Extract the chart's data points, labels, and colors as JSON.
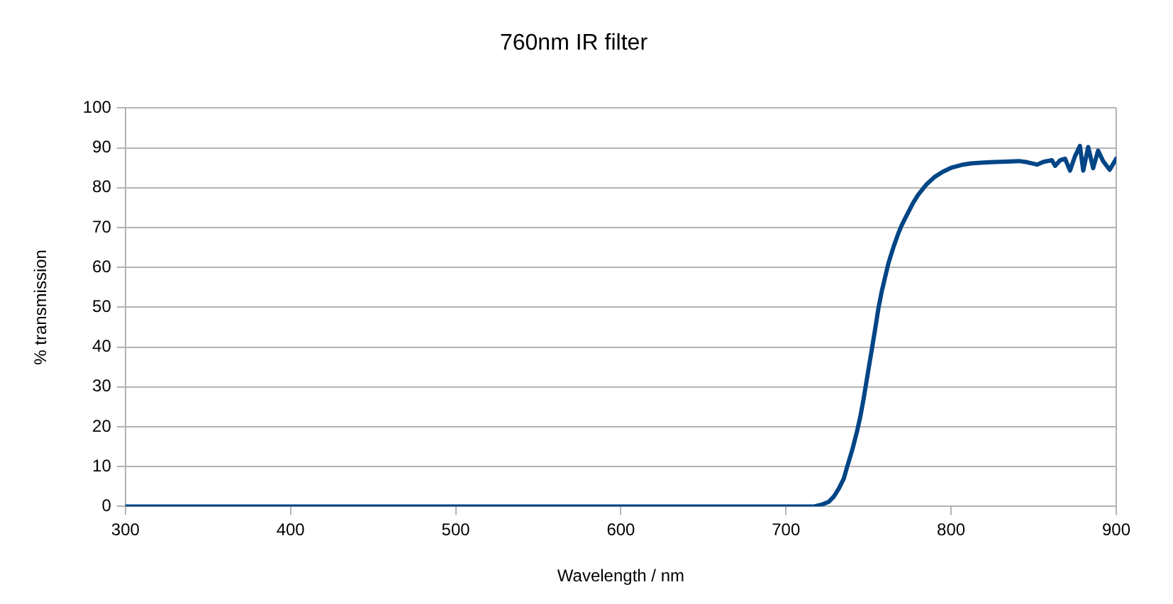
{
  "chart_data": {
    "type": "line",
    "title": "760nm IR filter",
    "xlabel": "Wavelength / nm",
    "ylabel": "% transmission",
    "x": [
      300,
      400,
      500,
      600,
      700,
      710,
      717,
      722,
      726,
      729,
      732,
      735,
      737,
      740,
      743,
      745,
      747,
      750,
      752,
      754,
      756,
      758,
      760,
      762,
      765,
      768,
      770,
      773,
      777,
      780,
      785,
      790,
      795,
      800,
      806,
      812,
      818,
      824,
      830,
      836,
      841,
      846,
      852,
      856,
      861,
      863,
      866,
      869,
      872,
      875,
      878,
      880,
      883,
      886,
      889,
      892,
      896,
      900
    ],
    "series": [
      {
        "color": "#004586",
        "values": [
          0,
          0,
          0,
          0,
          0,
          0,
          0,
          0.5,
          1.2,
          2.5,
          4.5,
          7,
          9.9,
          14,
          18.8,
          22.5,
          27,
          34.5,
          39.5,
          44.5,
          49.8,
          54,
          57.5,
          61,
          65,
          68.5,
          70.5,
          73,
          76.2,
          78.2,
          80.8,
          82.7,
          84,
          85,
          85.7,
          86.1,
          86.3,
          86.4,
          86.5,
          86.6,
          86.7,
          86.4,
          85.8,
          86.5,
          86.9,
          85.5,
          86.9,
          87.3,
          84.3,
          87.9,
          90.5,
          84.3,
          90.2,
          84.9,
          89.3,
          86.7,
          84.5,
          87.3
        ]
      }
    ],
    "xlim": [
      300,
      900
    ],
    "xticks": [
      300,
      400,
      500,
      600,
      700,
      800,
      900
    ],
    "ylim": [
      0,
      100
    ],
    "yticks": [
      0,
      10,
      20,
      30,
      40,
      50,
      60,
      70,
      80,
      90,
      100
    ],
    "grid": "y",
    "legend": false,
    "marker": "none",
    "line_style": "solid"
  }
}
